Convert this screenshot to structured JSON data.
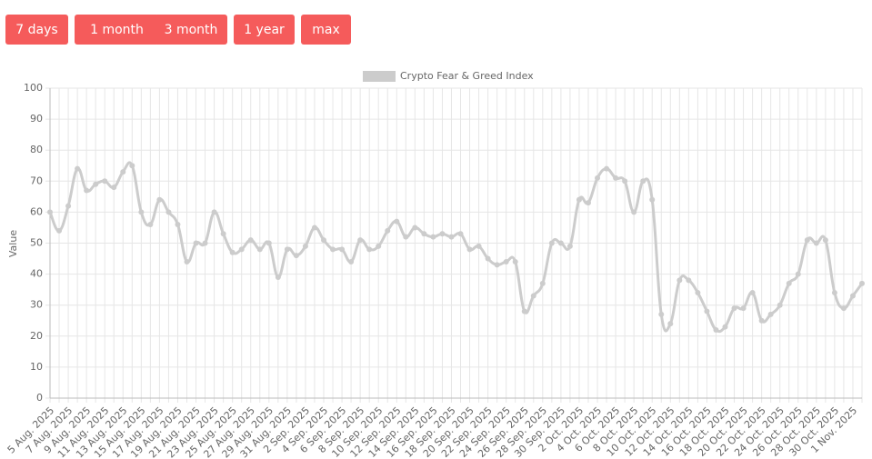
{
  "buttons": [
    "7 days",
    "1 month",
    "3 month",
    "1 year",
    "max"
  ],
  "chart_data": {
    "type": "line",
    "legend_label": "Crypto Fear & Greed Index",
    "y_label": "Value",
    "categories": [
      "5 Aug. 2025",
      null,
      "7 Aug. 2025",
      null,
      "9 Aug. 2025",
      null,
      "11 Aug. 2025",
      null,
      "13 Aug. 2025",
      null,
      "15 Aug. 2025",
      null,
      "17 Aug. 2025",
      null,
      "19 Aug. 2025",
      null,
      "21 Aug. 2025",
      null,
      "23 Aug. 2025",
      null,
      "25 Aug. 2025",
      null,
      "27 Aug. 2025",
      null,
      "29 Aug. 2025",
      null,
      "31 Aug. 2025",
      null,
      "2 Sep. 2025",
      null,
      "4 Sep. 2025",
      null,
      "6 Sep. 2025",
      null,
      "8 Sep. 2025",
      null,
      "10 Sep. 2025",
      null,
      "12 Sep. 2025",
      null,
      "14 Sep. 2025",
      null,
      "16 Sep. 2025",
      null,
      "18 Sep. 2025",
      null,
      "20 Sep. 2025",
      null,
      "22 Sep. 2025",
      null,
      "24 Sep. 2025",
      null,
      "26 Sep. 2025",
      null,
      "28 Sep. 2025",
      null,
      "30 Sep. 2025",
      null,
      "2 Oct. 2025",
      null,
      "4 Oct. 2025",
      null,
      "6 Oct. 2025",
      null,
      "8 Oct. 2025",
      null,
      "10 Oct. 2025",
      null,
      "12 Oct. 2025",
      null,
      "14 Oct. 2025",
      null,
      "16 Oct. 2025",
      null,
      "18 Oct. 2025",
      null,
      "20 Oct. 2025",
      null,
      "22 Oct. 2025",
      null,
      "24 Oct. 2025",
      null,
      "26 Oct. 2025",
      null,
      "28 Oct. 2025",
      null,
      "30 Oct. 2025",
      null,
      "1 Nov. 2025",
      null
    ],
    "series": [
      {
        "name": "Crypto Fear & Greed Index",
        "color": "#cccccc",
        "values": [
          60,
          54,
          62,
          74,
          67,
          69,
          70,
          68,
          73,
          75,
          60,
          56,
          64,
          60,
          56,
          44,
          50,
          50,
          60,
          53,
          47,
          48,
          51,
          48,
          50,
          39,
          48,
          46,
          49,
          55,
          51,
          48,
          48,
          44,
          51,
          48,
          49,
          54,
          57,
          52,
          55,
          53,
          52,
          53,
          52,
          53,
          48,
          49,
          45,
          43,
          44,
          44,
          28,
          33,
          37,
          50,
          50,
          49,
          64,
          63,
          71,
          74,
          71,
          70,
          60,
          70,
          64,
          27,
          24,
          38,
          38,
          34,
          28,
          22,
          23,
          29,
          29,
          34,
          25,
          27,
          30,
          37,
          40,
          51,
          50,
          51,
          34,
          29,
          33,
          37
        ]
      }
    ],
    "ylim": [
      0,
      100
    ],
    "yticks": [
      0,
      10,
      20,
      30,
      40,
      50,
      60,
      70,
      80,
      90,
      100
    ],
    "grid": true
  }
}
